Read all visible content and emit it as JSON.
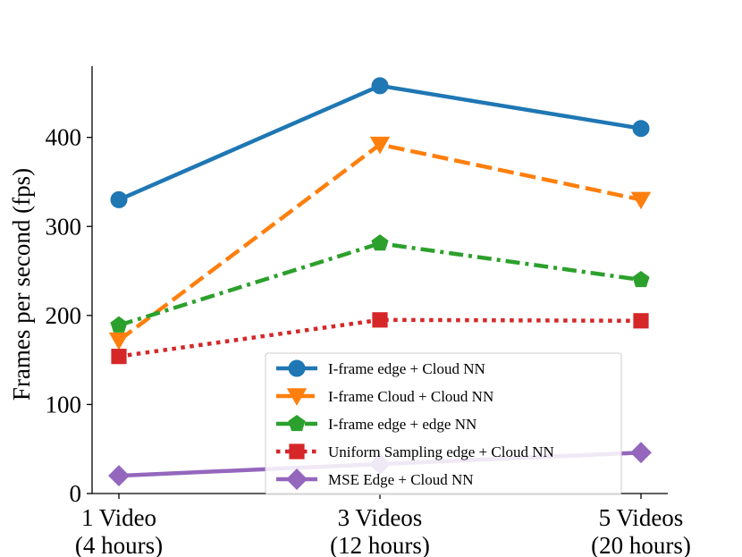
{
  "chart_data": {
    "type": "line",
    "ylabel": "Frames per second (fps)",
    "xlabel": "",
    "categories": [
      [
        "1 Video",
        "(4 hours)"
      ],
      [
        "3 Videos",
        "(12 hours)"
      ],
      [
        "5 Videos",
        "(20 hours)"
      ]
    ],
    "yticks": [
      0,
      100,
      200,
      300,
      400
    ],
    "ylim": [
      0,
      480
    ],
    "grid": false,
    "legend_position": "lower-right",
    "series": [
      {
        "name": "I-frame edge + Cloud NN",
        "values": [
          330,
          458,
          410
        ],
        "color": "#1f77b4",
        "dash": "solid",
        "marker": "circle"
      },
      {
        "name": "I-frame Cloud + Cloud NN",
        "values": [
          172,
          392,
          330
        ],
        "color": "#ff7f0e",
        "dash": "dashed",
        "marker": "triangle-down"
      },
      {
        "name": "I-frame edge + edge NN",
        "values": [
          189,
          281,
          240
        ],
        "color": "#2ca02c",
        "dash": "dashdot",
        "marker": "pentagon"
      },
      {
        "name": "Uniform Sampling edge + Cloud NN",
        "values": [
          154,
          195,
          194
        ],
        "color": "#d62728",
        "dash": "dotted",
        "marker": "square"
      },
      {
        "name": "MSE Edge + Cloud NN",
        "values": [
          20,
          33,
          46
        ],
        "color": "#9467bd",
        "dash": "solid",
        "marker": "diamond"
      }
    ]
  }
}
